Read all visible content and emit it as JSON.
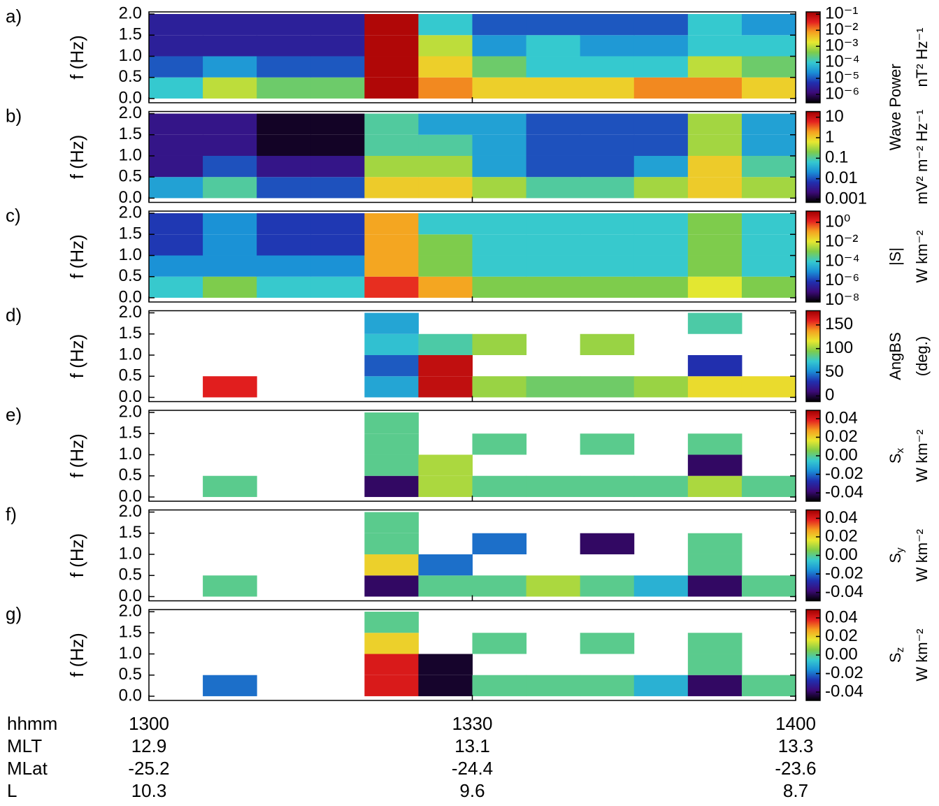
{
  "chart_data": {
    "type": "heatmap",
    "colormap": [
      "#000000",
      "#3c0a78",
      "#2030b0",
      "#1a8fd6",
      "#35c9d0",
      "#7fcc4a",
      "#e8e830",
      "#f5a020",
      "#e52020",
      "#a00000"
    ],
    "x_bins": [
      780,
      785,
      790,
      795,
      800,
      805,
      810,
      815,
      820,
      825,
      830,
      835,
      840
    ],
    "xlim": [
      780,
      840
    ],
    "xticks": [
      {
        "value": 780,
        "label": "1300"
      },
      {
        "value": 810,
        "label": "1330"
      },
      {
        "value": 840,
        "label": "1400"
      }
    ],
    "x_label": "hhmm",
    "ephemeris": [
      {
        "name": "MLT",
        "values": [
          12.9,
          13.1,
          13.3
        ]
      },
      {
        "name": "MLat",
        "values": [
          -25.2,
          -24.4,
          -23.6
        ]
      },
      {
        "name": "L",
        "values": [
          10.3,
          9.6,
          8.7
        ]
      }
    ],
    "y_label": "f (Hz)",
    "ylim": [
      -0.1,
      2.05
    ],
    "yticks": [
      {
        "value": 0,
        "label": "0.0"
      },
      0.5,
      {
        "value": 1,
        "label": "1.0"
      },
      1.5,
      {
        "value": 2,
        "label": "2.0"
      }
    ],
    "y_bins": [
      0,
      0.5,
      1,
      1.5,
      2
    ],
    "power_title": "Wave Power",
    "panels": [
      {
        "label": "a)",
        "clog": true,
        "clim": [
          3e-07,
          0.14
        ],
        "cbar_units": "nT² Hz⁻¹",
        "cticks": [
          {
            "value": 0.1,
            "label": "10⁻¹"
          },
          {
            "value": 0.01,
            "label": "10⁻²"
          },
          {
            "value": 0.001,
            "label": "10⁻³"
          },
          {
            "value": 0.0001,
            "label": "10⁻⁴"
          },
          {
            "value": 1e-05,
            "label": "10⁻⁵"
          },
          {
            "value": 1e-06,
            "label": "10⁻⁶"
          }
        ],
        "z": [
          [
            0.0001,
            0.001,
            0.0003,
            0.0003,
            0.1,
            0.01,
            0.003,
            0.003,
            0.003,
            0.01,
            0.01,
            0.003
          ],
          [
            1e-05,
            3e-05,
            1e-05,
            1e-05,
            0.1,
            0.003,
            0.0003,
            0.0001,
            0.0001,
            0.0001,
            0.001,
            0.0003
          ],
          [
            3e-06,
            3e-06,
            3e-06,
            3e-06,
            0.1,
            0.001,
            3e-05,
            0.0001,
            3e-05,
            3e-05,
            0.0001,
            0.0001
          ],
          [
            3e-06,
            3e-06,
            3e-06,
            3e-06,
            0.1,
            0.0001,
            1e-05,
            1e-05,
            1e-05,
            1e-05,
            0.0001,
            3e-05
          ]
        ]
      },
      {
        "label": "b)",
        "clog": true,
        "clim": [
          0.0007,
          19
        ],
        "cbar_units": "mV² m⁻² Hz⁻¹",
        "cticks": [
          10,
          1,
          0.1,
          0.01,
          0.001
        ],
        "z": [
          [
            0.03,
            0.1,
            0.01,
            0.01,
            1,
            1,
            0.3,
            0.1,
            0.1,
            0.3,
            1,
            0.3
          ],
          [
            0.003,
            0.01,
            0.003,
            0.003,
            0.3,
            0.3,
            0.03,
            0.01,
            0.01,
            0.03,
            1,
            0.1
          ],
          [
            0.003,
            0.003,
            0.001,
            0.001,
            0.1,
            0.1,
            0.03,
            0.01,
            0.01,
            0.01,
            0.3,
            0.03
          ],
          [
            0.003,
            0.003,
            0.001,
            0.001,
            0.1,
            0.03,
            0.03,
            0.01,
            0.01,
            0.01,
            0.3,
            0.03
          ]
        ]
      },
      {
        "label": "c)",
        "clog": true,
        "clim": [
          7e-09,
          14
        ],
        "cbar_title": "|S|",
        "cbar_units": "W km⁻²",
        "cticks": [
          {
            "value": 1,
            "label": "10⁰"
          },
          {
            "value": 0.01,
            "label": "10⁻²"
          },
          {
            "value": 0.0001,
            "label": "10⁻⁴"
          },
          {
            "value": 1e-06,
            "label": "10⁻⁶"
          },
          {
            "value": 1e-08,
            "label": "10⁻⁸"
          }
        ],
        "z": [
          [
            0.0001,
            0.001,
            0.0001,
            0.0001,
            1,
            0.1,
            0.001,
            0.001,
            0.001,
            0.001,
            0.01,
            0.001
          ],
          [
            1e-05,
            1e-05,
            1e-05,
            1e-05,
            0.1,
            0.001,
            0.0001,
            0.0001,
            0.0001,
            0.0001,
            0.001,
            0.0001
          ],
          [
            1e-06,
            1e-05,
            1e-06,
            1e-06,
            0.1,
            0.001,
            0.0001,
            0.0001,
            0.0001,
            0.0001,
            0.001,
            0.0001
          ],
          [
            1e-06,
            1e-05,
            1e-06,
            1e-06,
            0.1,
            0.0001,
            0.0001,
            0.0001,
            0.0001,
            0.0001,
            0.001,
            0.0001
          ]
        ]
      },
      {
        "label": "d)",
        "clog": false,
        "clim": [
          -12,
          180
        ],
        "cbar_title": "AngBS",
        "cbar_units": "(deg.)",
        "cticks": [
          150,
          100,
          50,
          0
        ],
        "z": [
          [
            null,
            160,
            null,
            null,
            60,
            170,
            100,
            90,
            90,
            100,
            120,
            120
          ],
          [
            null,
            null,
            null,
            null,
            40,
            170,
            null,
            null,
            null,
            null,
            30,
            null
          ],
          [
            null,
            null,
            null,
            null,
            70,
            80,
            100,
            null,
            100,
            null,
            null,
            null
          ],
          [
            null,
            null,
            null,
            null,
            60,
            null,
            null,
            null,
            null,
            null,
            80,
            null
          ]
        ]
      },
      {
        "label": "e)",
        "clog": false,
        "clim": [
          -0.049,
          0.049
        ],
        "cbar_title": "S",
        "cbar_sub": "x",
        "cbar_units": "W km⁻²",
        "cticks": [
          0.04,
          0.02,
          {
            "value": 0,
            "label": "0.00"
          },
          -0.02,
          -0.04
        ],
        "z": [
          [
            null,
            0,
            null,
            null,
            -0.04,
            0.01,
            0,
            0,
            0,
            0,
            0.01,
            0
          ],
          [
            null,
            null,
            null,
            null,
            0,
            0.01,
            null,
            null,
            null,
            null,
            -0.04,
            null
          ],
          [
            null,
            null,
            null,
            null,
            0,
            null,
            0,
            null,
            0,
            null,
            0,
            null
          ],
          [
            null,
            null,
            null,
            null,
            0,
            null,
            null,
            null,
            null,
            null,
            null,
            null
          ]
        ]
      },
      {
        "label": "f)",
        "clog": false,
        "clim": [
          -0.049,
          0.049
        ],
        "cbar_title": "S",
        "cbar_sub": "y",
        "cbar_units": "W km⁻²",
        "cticks": [
          0.04,
          0.02,
          {
            "value": 0,
            "label": "0.00"
          },
          -0.02,
          -0.04
        ],
        "z": [
          [
            null,
            0,
            null,
            null,
            -0.04,
            0,
            0,
            0.01,
            0,
            -0.01,
            -0.04,
            0
          ],
          [
            null,
            null,
            null,
            null,
            0.02,
            -0.02,
            null,
            null,
            null,
            null,
            0,
            null
          ],
          [
            null,
            null,
            null,
            null,
            0,
            null,
            -0.02,
            null,
            -0.04,
            null,
            0,
            null
          ],
          [
            null,
            null,
            null,
            null,
            0,
            null,
            null,
            null,
            null,
            null,
            null,
            null
          ]
        ]
      },
      {
        "label": "g)",
        "clog": false,
        "clim": [
          -0.049,
          0.049
        ],
        "cbar_title": "S",
        "cbar_sub": "z",
        "cbar_units": "W km⁻²",
        "cticks": [
          0.04,
          0.02,
          {
            "value": 0,
            "label": "0.00"
          },
          -0.02,
          -0.04
        ],
        "z": [
          [
            null,
            -0.02,
            null,
            null,
            0.04,
            -0.045,
            0,
            0,
            0,
            -0.01,
            -0.04,
            0
          ],
          [
            null,
            null,
            null,
            null,
            0.04,
            -0.045,
            null,
            null,
            null,
            null,
            0,
            null
          ],
          [
            null,
            null,
            null,
            null,
            0.02,
            null,
            0,
            null,
            0,
            null,
            0,
            null
          ],
          [
            null,
            null,
            null,
            null,
            0,
            null,
            null,
            null,
            null,
            null,
            null,
            null
          ]
        ]
      }
    ]
  }
}
